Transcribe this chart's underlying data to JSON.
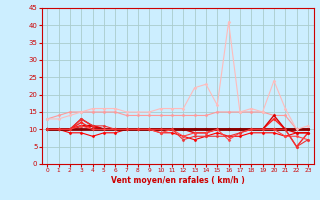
{
  "xlabel": "Vent moyen/en rafales ( km/h )",
  "xlim": [
    -0.5,
    23.5
  ],
  "ylim": [
    0,
    45
  ],
  "yticks": [
    0,
    5,
    10,
    15,
    20,
    25,
    30,
    35,
    40,
    45
  ],
  "xticks": [
    0,
    1,
    2,
    3,
    4,
    5,
    6,
    7,
    8,
    9,
    10,
    11,
    12,
    13,
    14,
    15,
    16,
    17,
    18,
    19,
    20,
    21,
    22,
    23
  ],
  "bg_color": "#cceeff",
  "grid_color": "#aacccc",
  "series": [
    {
      "x": [
        0,
        1,
        2,
        3,
        4,
        5,
        6,
        7,
        8,
        9,
        10,
        11,
        12,
        13,
        14,
        15,
        16,
        17,
        18,
        19,
        20,
        21,
        22,
        23
      ],
      "y": [
        10,
        10,
        9,
        9,
        8,
        9,
        9,
        10,
        10,
        10,
        9,
        9,
        8,
        7,
        8,
        9,
        8,
        8,
        9,
        9,
        9,
        8,
        9,
        9
      ],
      "color": "#ff0000",
      "lw": 0.8,
      "marker": "D",
      "ms": 1.5
    },
    {
      "x": [
        0,
        1,
        2,
        3,
        4,
        5,
        6,
        7,
        8,
        9,
        10,
        11,
        12,
        13,
        14,
        15,
        16,
        17,
        18,
        19,
        20,
        21,
        22,
        23
      ],
      "y": [
        10,
        10,
        10,
        11,
        11,
        10,
        10,
        10,
        10,
        10,
        10,
        10,
        10,
        10,
        10,
        10,
        10,
        10,
        10,
        10,
        10,
        10,
        10,
        10
      ],
      "color": "#cc0000",
      "lw": 1.5,
      "marker": "D",
      "ms": 1.5
    },
    {
      "x": [
        0,
        1,
        2,
        3,
        4,
        5,
        6,
        7,
        8,
        9,
        10,
        11,
        12,
        13,
        14,
        15,
        16,
        17,
        18,
        19,
        20,
        21,
        22,
        23
      ],
      "y": [
        10,
        10,
        10,
        12,
        10,
        10,
        10,
        10,
        10,
        10,
        10,
        10,
        10,
        10,
        10,
        10,
        10,
        10,
        10,
        10,
        13,
        10,
        5,
        9
      ],
      "color": "#ff2222",
      "lw": 1.0,
      "marker": "D",
      "ms": 1.5
    },
    {
      "x": [
        0,
        1,
        2,
        3,
        4,
        5,
        6,
        7,
        8,
        9,
        10,
        11,
        12,
        13,
        14,
        15,
        16,
        17,
        18,
        19,
        20,
        21,
        22,
        23
      ],
      "y": [
        13,
        14,
        15,
        15,
        15,
        15,
        15,
        14,
        14,
        14,
        14,
        14,
        14,
        14,
        14,
        15,
        15,
        15,
        15,
        15,
        14,
        14,
        10,
        10
      ],
      "color": "#ff9999",
      "lw": 0.8,
      "marker": "D",
      "ms": 1.5
    },
    {
      "x": [
        0,
        1,
        2,
        3,
        4,
        5,
        6,
        7,
        8,
        9,
        10,
        11,
        12,
        13,
        14,
        15,
        16,
        17,
        18,
        19,
        20,
        21,
        22,
        23
      ],
      "y": [
        10,
        10,
        10,
        13,
        11,
        10,
        10,
        10,
        10,
        10,
        10,
        10,
        10,
        9,
        9,
        10,
        10,
        10,
        10,
        10,
        14,
        10,
        9,
        9
      ],
      "color": "#dd0000",
      "lw": 1.0,
      "marker": "D",
      "ms": 1.5
    },
    {
      "x": [
        0,
        1,
        2,
        3,
        4,
        5,
        6,
        7,
        8,
        9,
        10,
        11,
        12,
        13,
        14,
        15,
        16,
        17,
        18,
        19,
        20,
        21,
        22,
        23
      ],
      "y": [
        10,
        10,
        10,
        10,
        10,
        10,
        10,
        10,
        10,
        10,
        10,
        10,
        10,
        10,
        10,
        10,
        10,
        10,
        10,
        10,
        10,
        10,
        10,
        10
      ],
      "color": "#880000",
      "lw": 2.0,
      "marker": "D",
      "ms": 1.5
    },
    {
      "x": [
        0,
        1,
        2,
        3,
        4,
        5,
        6,
        7,
        8,
        9,
        10,
        11,
        12,
        13,
        14,
        15,
        16,
        17,
        18,
        19,
        20,
        21,
        22,
        23
      ],
      "y": [
        10,
        10,
        10,
        11,
        10,
        10,
        10,
        10,
        10,
        10,
        9,
        10,
        8,
        9,
        9,
        10,
        7,
        9,
        10,
        10,
        10,
        8,
        8,
        7
      ],
      "color": "#ff4444",
      "lw": 0.8,
      "marker": "D",
      "ms": 1.5
    },
    {
      "x": [
        0,
        1,
        2,
        3,
        4,
        5,
        6,
        7,
        8,
        9,
        10,
        11,
        12,
        13,
        14,
        15,
        16,
        17,
        18,
        19,
        20,
        21,
        22,
        23
      ],
      "y": [
        13,
        13,
        14,
        15,
        16,
        16,
        16,
        15,
        15,
        15,
        16,
        16,
        16,
        22,
        23,
        17,
        41,
        15,
        16,
        15,
        24,
        16,
        10,
        11
      ],
      "color": "#ffbbbb",
      "lw": 0.8,
      "marker": "D",
      "ms": 1.5
    },
    {
      "x": [
        0,
        1,
        2,
        3,
        4,
        5,
        6,
        7,
        8,
        9,
        10,
        11,
        12,
        13,
        14,
        15,
        16,
        17,
        18,
        19,
        20,
        21,
        22,
        23
      ],
      "y": [
        10,
        10,
        10,
        13,
        11,
        11,
        10,
        10,
        10,
        10,
        10,
        10,
        7,
        8,
        8,
        8,
        8,
        9,
        10,
        10,
        10,
        10,
        5,
        7
      ],
      "color": "#ee3333",
      "lw": 0.8,
      "marker": "D",
      "ms": 1.5
    }
  ]
}
